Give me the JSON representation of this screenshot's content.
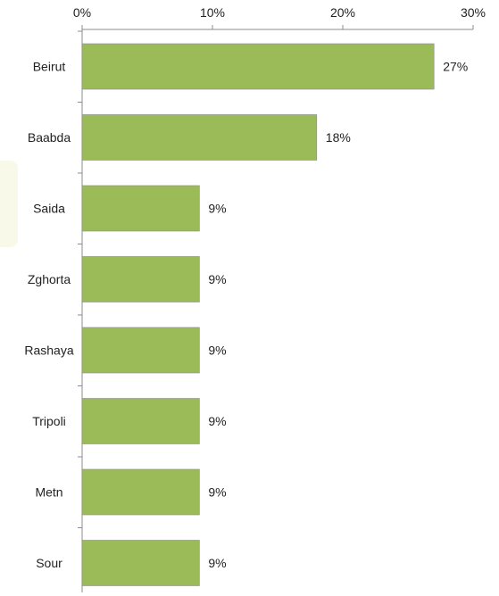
{
  "chart_data": {
    "type": "bar",
    "orientation": "horizontal",
    "categories": [
      "Beirut",
      "Baabda",
      "Saida",
      "Zghorta",
      "Rashaya",
      "Tripoli",
      "Metn",
      "Sour"
    ],
    "values": [
      27,
      18,
      9,
      9,
      9,
      9,
      9,
      9
    ],
    "data_labels": [
      "27%",
      "18%",
      "9%",
      "9%",
      "9%",
      "9%",
      "9%",
      "9%"
    ],
    "x_ticks": [
      0,
      10,
      20,
      30
    ],
    "x_tick_labels": [
      "0%",
      "10%",
      "20%",
      "30%"
    ],
    "xlim": [
      0,
      30
    ],
    "x_axis_position": "top",
    "grid": false,
    "legend": "none",
    "colors": {
      "bar": "#9bbb59",
      "decor_panel": "#f8f9e8"
    }
  }
}
